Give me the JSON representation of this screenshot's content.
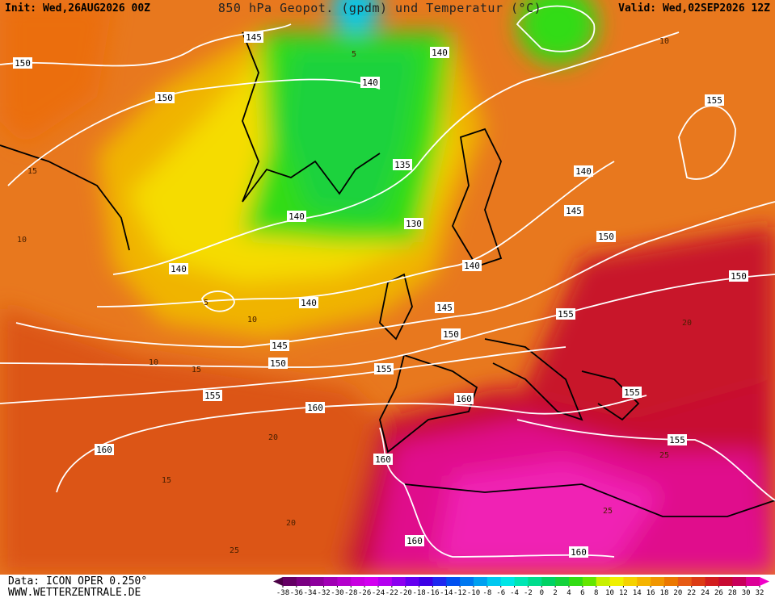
{
  "header": {
    "init": "Init: Wed,26AUG2026 00Z",
    "title": "850 hPa Geopot. (gpdm) und Temperatur (°C)",
    "valid": "Valid: Wed,02SEP2026 12Z"
  },
  "footer": {
    "data_source": "Data: ICON OPER 0.250°",
    "website": "WWW.WETTERZENTRALE.DE"
  },
  "colorbar": {
    "ticks": [
      -38,
      -36,
      -34,
      -32,
      -30,
      -28,
      -26,
      -24,
      -22,
      -20,
      -18,
      -16,
      -14,
      -12,
      -10,
      -8,
      -6,
      -4,
      -2,
      0,
      2,
      4,
      6,
      8,
      10,
      12,
      14,
      16,
      18,
      20,
      22,
      24,
      26,
      28,
      30,
      32
    ],
    "colors": [
      "#4b0045",
      "#640064",
      "#7a0082",
      "#8c009c",
      "#a000b4",
      "#b400cc",
      "#c800e0",
      "#d200f0",
      "#b400f0",
      "#8c00f0",
      "#6400f0",
      "#3c00e6",
      "#1e28f0",
      "#0050f0",
      "#0078f0",
      "#00a0f0",
      "#00c8f0",
      "#00e6e6",
      "#00e6b4",
      "#00dc8c",
      "#00d264",
      "#14d23c",
      "#32dc14",
      "#64e600",
      "#c8f000",
      "#f0f000",
      "#f5d200",
      "#f5b400",
      "#f09600",
      "#eb7800",
      "#e65a14",
      "#dc3c14",
      "#d21e1e",
      "#c80a32",
      "#c8005a",
      "#dc0096",
      "#f000c8"
    ]
  },
  "geopotential_labels": [
    "150",
    "145",
    "140",
    "150",
    "140",
    "135",
    "140",
    "155",
    "140",
    "130",
    "145",
    "150",
    "140",
    "140",
    "150",
    "140",
    "145",
    "155",
    "150",
    "145",
    "150",
    "155",
    "155",
    "160",
    "160",
    "155",
    "160",
    "160",
    "155",
    "160",
    "160"
  ],
  "temperature_labels": [
    "15",
    "10",
    "5",
    "10",
    "15",
    "10",
    "20",
    "15",
    "20",
    "25",
    "25",
    "20",
    "10",
    "5",
    "25"
  ]
}
